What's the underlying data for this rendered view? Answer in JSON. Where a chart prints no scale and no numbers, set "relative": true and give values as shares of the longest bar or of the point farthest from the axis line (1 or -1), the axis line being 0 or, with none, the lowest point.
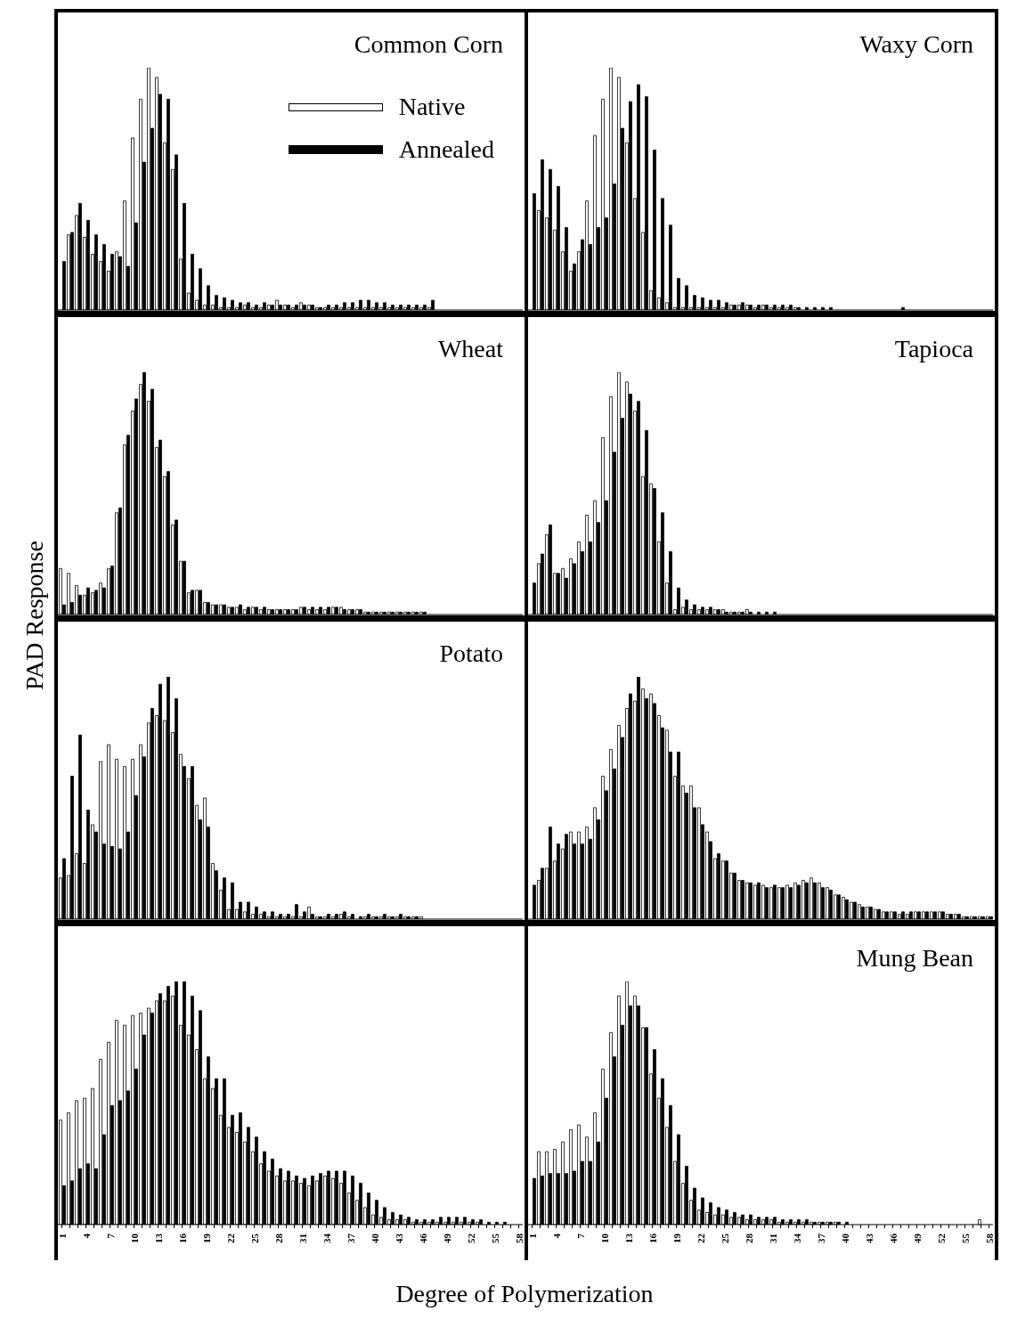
{
  "chart_data": [
    {
      "type": "bar",
      "title": "Common Corn",
      "relative": true,
      "tick_labels": false,
      "legend": "top right",
      "categories": [
        "1",
        null,
        null,
        "4",
        null,
        null,
        "7",
        null,
        null,
        "10",
        null,
        null,
        "13",
        null,
        null,
        "16",
        null,
        null,
        "19",
        null,
        null,
        "22",
        null,
        null,
        "25",
        null,
        null,
        "28",
        null,
        null,
        "31",
        null,
        null,
        "34",
        null,
        null,
        "37",
        null,
        null,
        "40",
        null,
        null,
        "43",
        null,
        null,
        "46",
        null,
        null,
        "49",
        null,
        null,
        "52",
        null,
        null,
        "55",
        null,
        null,
        "58"
      ],
      "series": [
        {
          "name": "Native",
          "color": "#ffffff",
          "values": [
            0,
            0.31,
            0.39,
            0.3,
            0.23,
            0.2,
            0.16,
            0.24,
            0.45,
            0.71,
            0.87,
            1,
            0.96,
            0.69,
            0.58,
            0.21,
            0.07,
            0.04,
            0.02,
            0.02,
            0.01,
            0.01,
            0.01,
            0.02,
            0.01,
            0.01,
            0.02,
            0.04,
            0.02,
            0.01,
            0.03,
            0.02,
            0.01,
            0.01,
            0.01,
            0.01,
            0.01,
            0.01,
            0.01,
            0.01,
            0.01,
            0.01,
            0.01,
            0.01,
            0.01,
            0.01,
            0.01,
            0,
            0,
            0,
            0,
            0,
            0,
            0,
            0,
            0,
            0,
            0
          ]
        },
        {
          "name": "Annealed",
          "color": "#000000",
          "values": [
            0.2,
            0.32,
            0.44,
            0.37,
            0.31,
            0.27,
            0.23,
            0.22,
            0.18,
            0.36,
            0.61,
            0.75,
            0.89,
            0.87,
            0.64,
            0.44,
            0.23,
            0.17,
            0.1,
            0.06,
            0.05,
            0.04,
            0.03,
            0.03,
            0.02,
            0.03,
            0.02,
            0.02,
            0.02,
            0.02,
            0.02,
            0.02,
            0.01,
            0.02,
            0.02,
            0.03,
            0.03,
            0.04,
            0.04,
            0.03,
            0.03,
            0.02,
            0.02,
            0.02,
            0.02,
            0.02,
            0.04,
            0,
            0,
            0,
            0,
            0,
            0,
            0,
            0,
            0,
            0,
            0
          ]
        }
      ]
    },
    {
      "type": "bar",
      "title": "Waxy Corn",
      "relative": true,
      "tick_labels": false,
      "categories": [
        "1",
        null,
        null,
        "4",
        null,
        null,
        "7",
        null,
        null,
        "10",
        null,
        null,
        "13",
        null,
        null,
        "16",
        null,
        null,
        "19",
        null,
        null,
        "22",
        null,
        null,
        "25",
        null,
        null,
        "28",
        null,
        null,
        "31",
        null,
        null,
        "34",
        null,
        null,
        "37",
        null,
        null,
        "40",
        null,
        null,
        "43",
        null,
        null,
        "46",
        null,
        null,
        "49",
        null,
        null,
        "52",
        null,
        null,
        "55",
        null,
        null,
        "58"
      ],
      "series": [
        {
          "color": "#ffffff",
          "values": [
            0,
            0.41,
            0.38,
            0.33,
            0.24,
            0.16,
            0.24,
            0.45,
            0.72,
            0.87,
            1,
            0.96,
            0.69,
            0.46,
            0.32,
            0.08,
            0.05,
            0.03,
            0.01,
            0.01,
            0.01,
            0.01,
            0.01,
            0.01,
            0.01,
            0.02,
            0.02,
            0.02,
            0.01,
            0.02,
            0.01,
            0.01,
            0.01,
            0.01,
            0,
            0,
            0,
            0,
            0,
            0,
            0,
            0,
            0,
            0,
            0,
            0,
            0,
            0,
            0,
            0,
            0,
            0,
            0,
            0,
            0,
            0,
            0,
            0
          ]
        },
        {
          "color": "#000000",
          "values": [
            0.48,
            0.62,
            0.58,
            0.51,
            0.34,
            0.19,
            0.29,
            0.27,
            0.34,
            0.38,
            0.52,
            0.75,
            0.86,
            0.93,
            0.88,
            0.66,
            0.46,
            0.35,
            0.13,
            0.1,
            0.06,
            0.05,
            0.04,
            0.04,
            0.03,
            0.02,
            0.03,
            0.02,
            0.02,
            0.02,
            0.02,
            0.02,
            0.02,
            0.01,
            0.01,
            0.01,
            0.01,
            0.01,
            0,
            0,
            0,
            0,
            0,
            0,
            0,
            0,
            0.01,
            0,
            0,
            0,
            0,
            0,
            0,
            0,
            0,
            0,
            0,
            0
          ]
        }
      ]
    },
    {
      "type": "bar",
      "title": "Wheat",
      "ylabel": "PAD Response",
      "relative": true,
      "tick_labels": false,
      "categories": [
        "1",
        null,
        null,
        "4",
        null,
        null,
        "7",
        null,
        null,
        "10",
        null,
        null,
        "13",
        null,
        null,
        "16",
        null,
        null,
        "19",
        null,
        null,
        "22",
        null,
        null,
        "25",
        null,
        null,
        "28",
        null,
        null,
        "31",
        null,
        null,
        "34",
        null,
        null,
        "37",
        null,
        null,
        "40",
        null,
        null,
        "43",
        null,
        null,
        "46",
        null,
        null,
        "49",
        null,
        null,
        "52",
        null,
        null,
        "55",
        null,
        null,
        "58"
      ],
      "series": [
        {
          "color": "#ffffff",
          "values": [
            0.19,
            0.17,
            0.12,
            0.08,
            0.09,
            0.13,
            0.19,
            0.42,
            0.7,
            0.84,
            0.95,
            0.88,
            0.69,
            0.57,
            0.37,
            0.22,
            0.09,
            0.1,
            0.05,
            0.04,
            0.04,
            0.03,
            0.03,
            0.02,
            0.03,
            0.02,
            0.02,
            0.02,
            0.02,
            0.02,
            0.03,
            0.02,
            0.02,
            0.02,
            0.03,
            0.03,
            0.02,
            0.02,
            0.01,
            0.01,
            0.01,
            0.01,
            0.01,
            0.01,
            0.01,
            0.01,
            0,
            0,
            0,
            0,
            0,
            0,
            0,
            0,
            0,
            0,
            0,
            0
          ]
        },
        {
          "color": "#000000",
          "values": [
            0.04,
            0.05,
            0.08,
            0.11,
            0.1,
            0.11,
            0.2,
            0.44,
            0.74,
            0.89,
            1,
            0.93,
            0.72,
            0.59,
            0.39,
            0.22,
            0.1,
            0.1,
            0.05,
            0.04,
            0.04,
            0.03,
            0.04,
            0.03,
            0.03,
            0.03,
            0.02,
            0.02,
            0.02,
            0.02,
            0.03,
            0.03,
            0.03,
            0.03,
            0.03,
            0.02,
            0.02,
            0.02,
            0.01,
            0.01,
            0.01,
            0.01,
            0.01,
            0.01,
            0.01,
            0.01,
            0,
            0,
            0,
            0,
            0,
            0,
            0,
            0,
            0,
            0,
            0,
            0
          ]
        }
      ]
    },
    {
      "type": "bar",
      "title": "Tapioca",
      "relative": true,
      "tick_labels": false,
      "categories": [
        "1",
        null,
        null,
        "4",
        null,
        null,
        "7",
        null,
        null,
        "10",
        null,
        null,
        "13",
        null,
        null,
        "16",
        null,
        null,
        "19",
        null,
        null,
        "22",
        null,
        null,
        "25",
        null,
        null,
        "28",
        null,
        null,
        "31",
        null,
        null,
        "34",
        null,
        null,
        "37",
        null,
        null,
        "40",
        null,
        null,
        "43",
        null,
        null,
        "46",
        null,
        null,
        "49",
        null,
        null,
        "52",
        null,
        null,
        "55",
        null,
        null,
        "58"
      ],
      "series": [
        {
          "color": "#ffffff",
          "values": [
            0,
            0.21,
            0.33,
            0.17,
            0.19,
            0.23,
            0.3,
            0.41,
            0.47,
            0.73,
            0.9,
            1,
            0.96,
            0.84,
            0.57,
            0.54,
            0.3,
            0.13,
            0.02,
            0.03,
            0.02,
            0.02,
            0.02,
            0.02,
            0.02,
            0.01,
            0.01,
            0.02,
            0,
            0,
            0,
            0,
            0,
            0,
            0,
            0,
            0,
            0,
            0,
            0,
            0,
            0,
            0,
            0,
            0,
            0,
            0,
            0,
            0,
            0,
            0,
            0,
            0,
            0,
            0,
            0,
            0,
            0
          ]
        },
        {
          "color": "#000000",
          "values": [
            0.13,
            0.25,
            0.37,
            0.17,
            0.15,
            0.21,
            0.26,
            0.3,
            0.38,
            0.47,
            0.67,
            0.81,
            0.91,
            0.88,
            0.76,
            0.52,
            0.42,
            0.26,
            0.11,
            0.06,
            0.04,
            0.03,
            0.03,
            0.02,
            0.01,
            0.01,
            0.01,
            0.01,
            0.01,
            0.01,
            0.01,
            0,
            0,
            0,
            0,
            0,
            0,
            0,
            0,
            0,
            0,
            0,
            0,
            0,
            0,
            0,
            0,
            0,
            0,
            0,
            0,
            0,
            0,
            0,
            0,
            0,
            0,
            0
          ]
        }
      ]
    },
    {
      "type": "bar",
      "title": "Potato",
      "relative": true,
      "tick_labels": false,
      "categories": [
        "1",
        null,
        null,
        "4",
        null,
        null,
        "7",
        null,
        null,
        "10",
        null,
        null,
        "13",
        null,
        null,
        "16",
        null,
        null,
        "19",
        null,
        null,
        "22",
        null,
        null,
        "25",
        null,
        null,
        "28",
        null,
        null,
        "31",
        null,
        null,
        "34",
        null,
        null,
        "37",
        null,
        null,
        "40",
        null,
        null,
        "43",
        null,
        null,
        "46",
        null,
        null,
        "49",
        null,
        null,
        "52",
        null,
        null,
        "55",
        null,
        null,
        "58"
      ],
      "series": [
        {
          "color": "#ffffff",
          "values": [
            0.17,
            0.18,
            0.27,
            0.23,
            0.39,
            0.65,
            0.72,
            0.66,
            0.63,
            0.66,
            0.72,
            0.81,
            0.84,
            0.82,
            0.77,
            0.68,
            0.58,
            0.47,
            0.5,
            0.23,
            0.12,
            0.04,
            0.04,
            0.03,
            0.02,
            0.02,
            0.01,
            0.01,
            0.01,
            0.01,
            0.01,
            0.05,
            0.01,
            0.01,
            0.01,
            0.02,
            0.01,
            0,
            0.01,
            0.01,
            0.01,
            0.01,
            0.01,
            0.01,
            0.01,
            0.01,
            0,
            0,
            0,
            0,
            0,
            0,
            0,
            0,
            0,
            0,
            0,
            0
          ]
        },
        {
          "color": "#000000",
          "values": [
            0.25,
            0.59,
            0.76,
            0.45,
            0.36,
            0.31,
            0.3,
            0.29,
            0.36,
            0.51,
            0.67,
            0.87,
            0.97,
            1,
            0.91,
            0.63,
            0.63,
            0.41,
            0.38,
            0.2,
            0.17,
            0.15,
            0.07,
            0.07,
            0.05,
            0.03,
            0.03,
            0.02,
            0.02,
            0.06,
            0.03,
            0.02,
            0.01,
            0.02,
            0.02,
            0.03,
            0.02,
            0.01,
            0.02,
            0.01,
            0.02,
            0.01,
            0.02,
            0.01,
            0.01,
            0,
            0,
            0,
            0,
            0,
            0,
            0,
            0,
            0,
            0,
            0,
            0,
            0
          ]
        }
      ]
    },
    {
      "type": "bar",
      "relative": true,
      "tick_labels": false,
      "categories": [
        "1",
        null,
        null,
        "4",
        null,
        null,
        "7",
        null,
        null,
        "10",
        null,
        null,
        "13",
        null,
        null,
        "16",
        null,
        null,
        "19",
        null,
        null,
        "22",
        null,
        null,
        "25",
        null,
        null,
        "28",
        null,
        null,
        "31",
        null,
        null,
        "34",
        null,
        null,
        "37",
        null,
        null,
        "40",
        null,
        null,
        "43",
        null,
        null,
        "46",
        null,
        null,
        "49",
        null,
        null,
        "52",
        null,
        null,
        "55",
        null,
        null,
        "58"
      ],
      "series": [
        {
          "color": "#ffffff",
          "values": [
            0,
            0.16,
            0.21,
            0.24,
            0.29,
            0.36,
            0.36,
            0.38,
            0.46,
            0.59,
            0.7,
            0.8,
            0.87,
            0.9,
            0.95,
            0.93,
            0.84,
            0.78,
            0.59,
            0.55,
            0.55,
            0.46,
            0.36,
            0.25,
            0.24,
            0.19,
            0.16,
            0.15,
            0.14,
            0.14,
            0.13,
            0.13,
            0.14,
            0.15,
            0.16,
            0.17,
            0.15,
            0.13,
            0.1,
            0.09,
            0.07,
            0.06,
            0.05,
            0.04,
            0.03,
            0.03,
            0.02,
            0.02,
            0.03,
            0.03,
            0.03,
            0.03,
            0.02,
            0.02,
            0.01,
            0.01,
            0.01,
            0.01
          ]
        },
        {
          "color": "#000000",
          "values": [
            0.14,
            0.21,
            0.38,
            0.31,
            0.35,
            0.31,
            0.31,
            0.33,
            0.41,
            0.53,
            0.62,
            0.75,
            0.93,
            1,
            0.91,
            0.89,
            0.79,
            0.69,
            0.69,
            0.52,
            0.46,
            0.39,
            0.32,
            0.27,
            0.24,
            0.19,
            0.16,
            0.15,
            0.15,
            0.13,
            0.14,
            0.13,
            0.13,
            0.14,
            0.15,
            0.15,
            0.13,
            0.12,
            0.1,
            0.08,
            0.07,
            0.05,
            0.05,
            0.04,
            0.03,
            0.03,
            0.03,
            0.03,
            0.03,
            0.03,
            0.03,
            0.03,
            0.02,
            0.02,
            0.01,
            0.01,
            0.01,
            0.01
          ]
        }
      ]
    },
    {
      "type": "bar",
      "xlabel": "Degree of Polymerization",
      "relative": true,
      "tick_labels": "x",
      "categories": [
        "1",
        null,
        null,
        "4",
        null,
        null,
        "7",
        null,
        null,
        "10",
        null,
        null,
        "13",
        null,
        null,
        "16",
        null,
        null,
        "19",
        null,
        null,
        "22",
        null,
        null,
        "25",
        null,
        null,
        "28",
        null,
        null,
        "31",
        null,
        null,
        "34",
        null,
        null,
        "37",
        null,
        null,
        "40",
        null,
        null,
        "43",
        null,
        null,
        "46",
        null,
        null,
        "49",
        null,
        null,
        "52",
        null,
        null,
        "55",
        null,
        null,
        "58"
      ],
      "series": [
        {
          "color": "#ffffff",
          "values": [
            0.43,
            0.46,
            0.51,
            0.52,
            0.56,
            0.68,
            0.75,
            0.84,
            0.82,
            0.86,
            0.87,
            0.89,
            0.92,
            0.92,
            0.94,
            0.82,
            0.78,
            0.72,
            0.6,
            0.56,
            0.45,
            0.4,
            0.38,
            0.34,
            0.3,
            0.25,
            0.22,
            0.2,
            0.18,
            0.18,
            0.17,
            0.16,
            0.18,
            0.2,
            0.19,
            0.17,
            0.13,
            0.1,
            0.07,
            0.04,
            0.03,
            0.02,
            0.02,
            0.02,
            0.01,
            0.01,
            0.01,
            0.01,
            0.01,
            0.01,
            0.01,
            0.01,
            0.01,
            0,
            0,
            0,
            0,
            0
          ]
        },
        {
          "color": "#000000",
          "values": [
            0.16,
            0.18,
            0.23,
            0.25,
            0.23,
            0.37,
            0.49,
            0.51,
            0.55,
            0.64,
            0.78,
            0.87,
            0.95,
            0.98,
            1,
            1,
            0.94,
            0.88,
            0.69,
            0.6,
            0.6,
            0.45,
            0.46,
            0.4,
            0.36,
            0.3,
            0.27,
            0.23,
            0.22,
            0.2,
            0.19,
            0.2,
            0.21,
            0.22,
            0.22,
            0.22,
            0.2,
            0.17,
            0.13,
            0.1,
            0.07,
            0.05,
            0.04,
            0.03,
            0.02,
            0.02,
            0.02,
            0.03,
            0.03,
            0.03,
            0.03,
            0.02,
            0.02,
            0.01,
            0.01,
            0.01,
            0,
            0
          ]
        }
      ]
    },
    {
      "type": "bar",
      "title": "Mung Bean",
      "relative": true,
      "tick_labels": "x",
      "categories": [
        "1",
        null,
        null,
        "4",
        null,
        null,
        "7",
        null,
        null,
        "10",
        null,
        null,
        "13",
        null,
        null,
        "16",
        null,
        null,
        "19",
        null,
        null,
        "22",
        null,
        null,
        "25",
        null,
        null,
        "28",
        null,
        null,
        "31",
        null,
        null,
        "34",
        null,
        null,
        "37",
        null,
        null,
        "40",
        null,
        null,
        "43",
        null,
        null,
        "46",
        null,
        null,
        "49",
        null,
        null,
        "52",
        null,
        null,
        "55",
        null,
        null,
        "58"
      ],
      "series": [
        {
          "color": "#ffffff",
          "values": [
            0,
            0.3,
            0.3,
            0.31,
            0.34,
            0.39,
            0.41,
            0.36,
            0.46,
            0.64,
            0.79,
            0.94,
            1,
            0.94,
            0.81,
            0.62,
            0.52,
            0.4,
            0.26,
            0.17,
            0.1,
            0.06,
            0.05,
            0.04,
            0.04,
            0.03,
            0.03,
            0.02,
            0.02,
            0.02,
            0.02,
            0.01,
            0.01,
            0.01,
            0.01,
            0.01,
            0.01,
            0.01,
            0.01,
            0,
            0,
            0,
            0,
            0,
            0,
            0,
            0,
            0,
            0,
            0,
            0,
            0,
            0,
            0,
            0,
            0,
            0.02,
            0
          ]
        },
        {
          "color": "#000000",
          "values": [
            0.19,
            0.2,
            0.21,
            0.21,
            0.21,
            0.22,
            0.26,
            0.26,
            0.34,
            0.52,
            0.69,
            0.82,
            0.9,
            0.9,
            0.81,
            0.72,
            0.6,
            0.49,
            0.37,
            0.24,
            0.15,
            0.11,
            0.09,
            0.07,
            0.06,
            0.05,
            0.04,
            0.04,
            0.03,
            0.03,
            0.03,
            0.02,
            0.02,
            0.02,
            0.02,
            0.01,
            0.01,
            0.01,
            0.01,
            0.01,
            0,
            0,
            0,
            0,
            0,
            0,
            0,
            0,
            0,
            0,
            0,
            0,
            0,
            0,
            0,
            0,
            0,
            0
          ]
        }
      ]
    }
  ]
}
